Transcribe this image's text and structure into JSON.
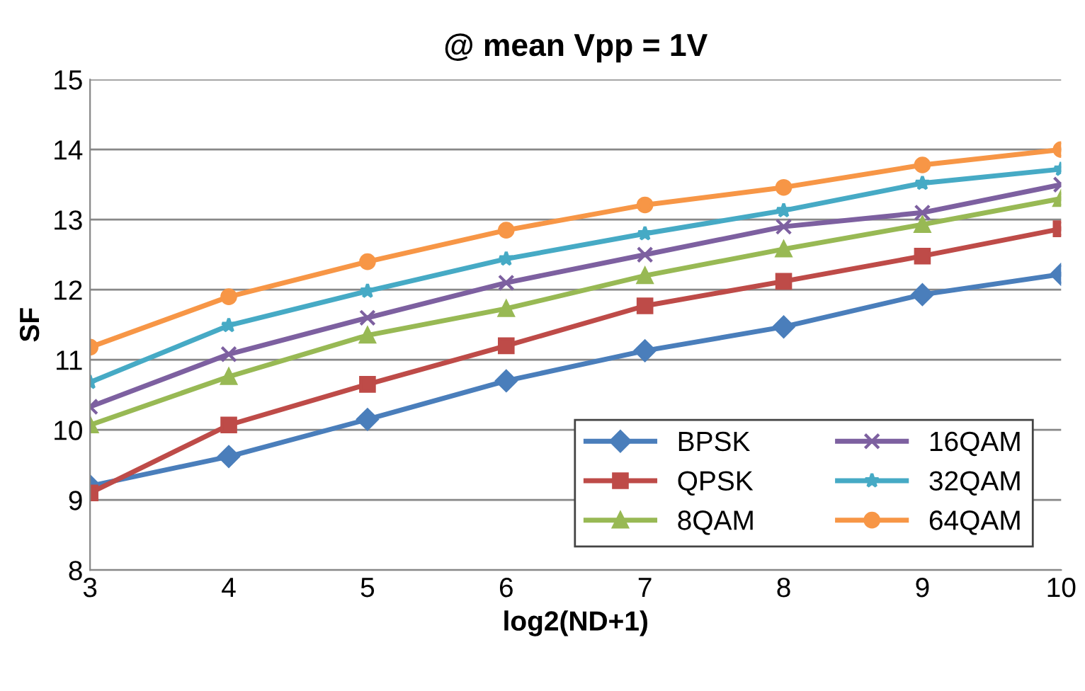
{
  "chart_data": {
    "type": "line",
    "title": "@ mean Vpp = 1V",
    "xlabel": "log2(ND+1)",
    "ylabel": "SF",
    "x": [
      3,
      4,
      5,
      6,
      7,
      8,
      9,
      10
    ],
    "xlim": [
      3,
      10
    ],
    "xticks": [
      3,
      4,
      5,
      6,
      7,
      8,
      9,
      10
    ],
    "ylim": [
      8,
      15
    ],
    "yticks": [
      8,
      9,
      10,
      11,
      12,
      13,
      14,
      15
    ],
    "grid": "y",
    "legend": "bottom right",
    "line_style": "solid",
    "series": [
      {
        "name": "BPSK",
        "color": "#4a7ebb",
        "marker": "diamond",
        "values": [
          9.2,
          9.62,
          10.15,
          10.7,
          11.13,
          11.47,
          11.93,
          12.22
        ]
      },
      {
        "name": "QPSK",
        "color": "#be4b48",
        "marker": "square",
        "values": [
          9.1,
          10.07,
          10.65,
          11.2,
          11.77,
          12.12,
          12.48,
          12.87
        ]
      },
      {
        "name": "8QAM",
        "color": "#98b954",
        "marker": "triangle",
        "values": [
          10.07,
          10.76,
          11.35,
          11.73,
          12.2,
          12.58,
          12.93,
          13.3
        ]
      },
      {
        "name": "16QAM",
        "color": "#7d60a0",
        "marker": "cross",
        "values": [
          10.33,
          11.08,
          11.6,
          12.1,
          12.5,
          12.9,
          13.1,
          13.5
        ]
      },
      {
        "name": "32QAM",
        "color": "#46aac5",
        "marker": "star",
        "values": [
          10.68,
          11.49,
          11.98,
          12.44,
          12.8,
          13.13,
          13.52,
          13.72
        ]
      },
      {
        "name": "64QAM",
        "color": "#f79646",
        "marker": "circle",
        "values": [
          11.18,
          11.9,
          12.4,
          12.85,
          13.21,
          13.46,
          13.78,
          14.0
        ]
      }
    ]
  }
}
